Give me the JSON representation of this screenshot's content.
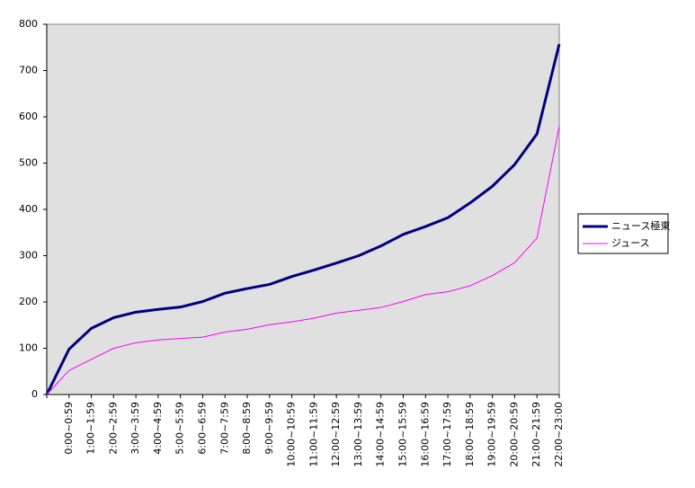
{
  "chart_data": {
    "type": "line",
    "categories": [
      null,
      "0:00~0:59",
      "1:00~1:59",
      "2:00~2:59",
      "3:00~3:59",
      "4:00~4:59",
      "5:00~5:59",
      "6:00~6:59",
      "7:00~7:59",
      "8:00~8:59",
      "9:00~9:59",
      "10:00~10:59",
      "11:00~11:59",
      "12:00~12:59",
      "13:00~13:59",
      "14:00~14:59",
      "15:00~15:59",
      "16:00~16:59",
      "17:00~17:59",
      "18:00~18:59",
      "19:00~19:59",
      "20:00~20:59",
      "21:00~21:59",
      "22:00~23:00"
    ],
    "series": [
      {
        "name": "ニュース極東",
        "color": "#000080",
        "values": [
          0,
          98,
          143,
          166,
          178,
          184,
          189,
          201,
          219,
          229,
          238,
          255,
          269,
          284,
          300,
          321,
          346,
          363,
          382,
          414,
          450,
          497,
          563,
          757
        ]
      },
      {
        "name": "ジュース",
        "color": "#ff00ff",
        "values": [
          0,
          52,
          76,
          100,
          112,
          118,
          121,
          124,
          135,
          141,
          151,
          157,
          165,
          176,
          182,
          188,
          201,
          216,
          222,
          235,
          257,
          285,
          338,
          580
        ]
      }
    ],
    "ylim": [
      0,
      800
    ],
    "yticks": [
      0,
      100,
      200,
      300,
      400,
      500,
      600,
      700,
      800
    ],
    "grid": false,
    "legend": "right"
  }
}
